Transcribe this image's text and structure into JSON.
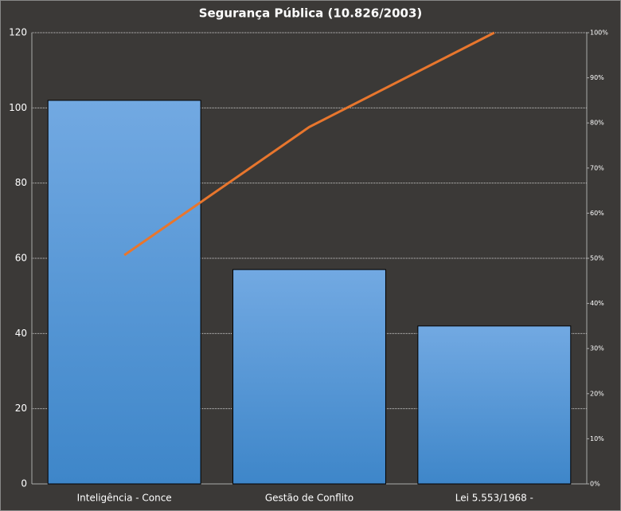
{
  "chart_data": {
    "type": "bar",
    "title": "Segurança Pública (10.826/2003)",
    "categories": [
      "Inteligência - Conce",
      "Gestão de Conflito",
      "Lei 5.553/1968 -"
    ],
    "series": [
      {
        "color": "#5499dd",
        "values": [
          102,
          57,
          42
        ]
      },
      {
        "type": "line",
        "axis": "y2",
        "color": "#e8762d",
        "values": [
          50.7,
          79.1,
          100
        ]
      }
    ],
    "ylim": [
      0,
      120
    ],
    "yticks": [
      0,
      20,
      40,
      60,
      80,
      100,
      120
    ],
    "y2lim": [
      0,
      100
    ],
    "y2ticks": [
      {
        "value": 0,
        "label": "0%"
      },
      {
        "value": 10,
        "label": "10%"
      },
      {
        "value": 20,
        "label": "20%"
      },
      {
        "value": 30,
        "label": "30%"
      },
      {
        "value": 40,
        "label": "40%"
      },
      {
        "value": 50,
        "label": "50%"
      },
      {
        "value": 60,
        "label": "60%"
      },
      {
        "value": 70,
        "label": "70%"
      },
      {
        "value": 80,
        "label": "80%"
      },
      {
        "value": 90,
        "label": "90%"
      },
      {
        "value": 100,
        "label": "100%"
      }
    ],
    "grid": true
  }
}
